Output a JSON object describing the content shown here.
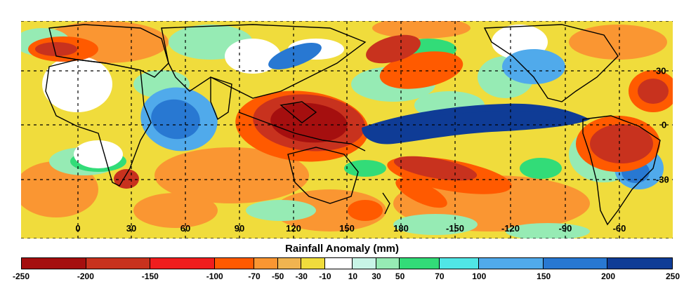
{
  "legend": {
    "title": "Rainfall Anomaly (mm)",
    "ticks": [
      "-250",
      "-200",
      "-150",
      "-100",
      "-70",
      "-50",
      "-30",
      "-10",
      "10",
      "30",
      "50",
      "70",
      "100",
      "150",
      "200",
      "250"
    ],
    "colors": [
      "#a50f0f",
      "#c8321e",
      "#f01e1e",
      "#ff5a00",
      "#fa9632",
      "#f0b450",
      "#f0dc3c",
      "#ffffff",
      "#c8f5e6",
      "#96ebb4",
      "#32dc78",
      "#50e6e6",
      "#50aaeb",
      "#2878d2",
      "#0f3c96"
    ]
  },
  "map": {
    "longitude_labels": [
      "0",
      "30",
      "60",
      "90",
      "120",
      "150",
      "180",
      "-150",
      "-120",
      "-90",
      "-60"
    ],
    "latitude_labels": [
      "30",
      "0",
      "-30"
    ],
    "colors": {
      "dry_extreme": "#a50f0f",
      "dry_strong": "#c8321e",
      "dry_moderate": "#ff5a00",
      "dry_light": "#fa9632",
      "dry_weak": "#f0dc3c",
      "wet_weak": "#96ebb4",
      "wet_light": "#32dc78",
      "wet_moderate": "#50aaeb",
      "wet_strong": "#2878d2",
      "wet_extreme": "#0f3c96"
    }
  }
}
